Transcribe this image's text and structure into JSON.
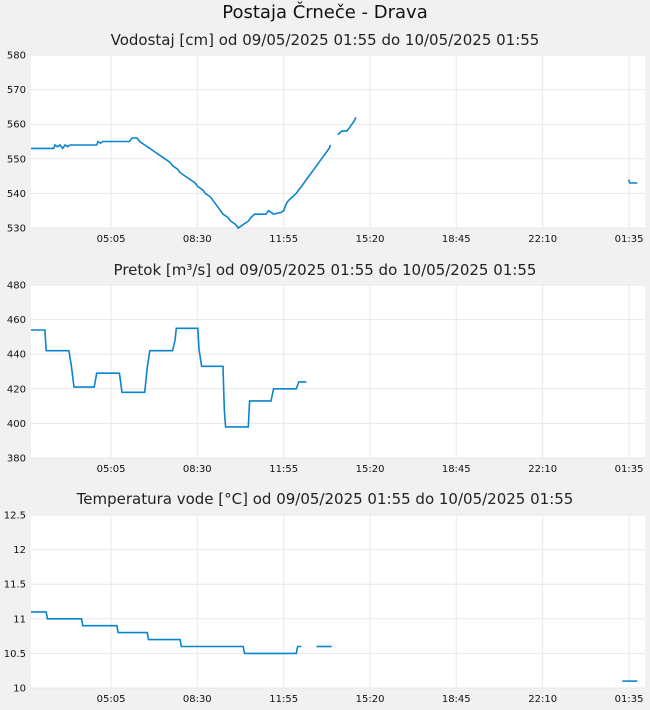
{
  "page_title": "Postaja Črneče - Drava",
  "colors": {
    "line": "#0a84d0",
    "plot_bg": "#ffffff",
    "grid": "#e8e8e8",
    "page_bg": "#f1f1f1"
  },
  "x_ticks": [
    "05:05",
    "08:30",
    "11:55",
    "15:20",
    "18:45",
    "22:10",
    "01:35"
  ],
  "chart_data": [
    {
      "type": "line",
      "title": "Vodostaj [cm] od 09/05/2025 01:55 do 10/05/2025 01:55",
      "xlabel": "",
      "ylabel": "",
      "ylim": [
        530,
        580
      ],
      "y_ticks": [
        "580",
        "570",
        "560",
        "550",
        "540",
        "530"
      ],
      "x_unit": "hours since 09/05/2025 01:55",
      "segments": [
        [
          [
            0,
            553
          ],
          [
            0.9,
            553
          ],
          [
            0.95,
            554
          ],
          [
            1.05,
            553.5
          ],
          [
            1.15,
            554
          ],
          [
            1.25,
            553
          ],
          [
            1.35,
            554
          ],
          [
            1.45,
            553.5
          ],
          [
            1.55,
            554
          ],
          [
            2.6,
            554
          ],
          [
            2.65,
            555
          ],
          [
            2.75,
            554.5
          ],
          [
            2.85,
            555
          ],
          [
            3.9,
            555
          ],
          [
            4.0,
            556
          ],
          [
            4.2,
            556
          ],
          [
            4.3,
            555
          ],
          [
            4.5,
            554
          ],
          [
            4.7,
            553
          ],
          [
            4.9,
            552
          ],
          [
            5.1,
            551
          ],
          [
            5.3,
            550
          ],
          [
            5.5,
            549
          ],
          [
            5.6,
            548
          ],
          [
            5.8,
            547
          ],
          [
            5.9,
            546
          ],
          [
            6.1,
            545
          ],
          [
            6.3,
            544
          ],
          [
            6.5,
            543
          ],
          [
            6.6,
            542
          ],
          [
            6.8,
            541
          ],
          [
            6.9,
            540
          ],
          [
            7.1,
            539
          ],
          [
            7.2,
            538
          ],
          [
            7.3,
            537
          ],
          [
            7.4,
            536
          ],
          [
            7.5,
            535
          ],
          [
            7.6,
            534
          ],
          [
            7.8,
            533
          ],
          [
            7.9,
            532
          ],
          [
            8.1,
            531
          ],
          [
            8.2,
            530
          ],
          [
            8.3,
            530.5
          ],
          [
            8.4,
            531
          ],
          [
            8.5,
            531.5
          ],
          [
            8.6,
            532
          ],
          [
            8.7,
            533
          ],
          [
            8.85,
            534
          ],
          [
            9.3,
            534
          ],
          [
            9.4,
            535
          ],
          [
            9.5,
            534.5
          ],
          [
            9.6,
            534
          ],
          [
            9.9,
            534.5
          ],
          [
            10.0,
            535
          ],
          [
            10.1,
            537
          ],
          [
            10.2,
            538
          ],
          [
            10.35,
            539
          ],
          [
            10.5,
            540
          ],
          [
            10.6,
            541
          ],
          [
            10.7,
            542
          ],
          [
            10.8,
            543
          ],
          [
            10.9,
            544
          ],
          [
            11.0,
            545
          ],
          [
            11.1,
            546
          ],
          [
            11.2,
            547
          ],
          [
            11.3,
            548
          ],
          [
            11.4,
            549
          ],
          [
            11.5,
            550
          ],
          [
            11.6,
            551
          ],
          [
            11.7,
            552
          ],
          [
            11.8,
            553
          ],
          [
            11.85,
            554
          ]
        ],
        [
          [
            12.15,
            557
          ],
          [
            12.3,
            558
          ],
          [
            12.5,
            558
          ],
          [
            12.6,
            559
          ],
          [
            12.7,
            560
          ],
          [
            12.8,
            561
          ],
          [
            12.85,
            562
          ]
        ],
        [
          [
            23.65,
            544
          ],
          [
            23.7,
            543
          ],
          [
            24.0,
            543
          ]
        ]
      ]
    },
    {
      "type": "line",
      "title": "Pretok [m³/s] od 09/05/2025 01:55 do 10/05/2025 01:55",
      "xlabel": "",
      "ylabel": "",
      "ylim": [
        380,
        480
      ],
      "y_ticks": [
        "480",
        "460",
        "440",
        "420",
        "400",
        "380"
      ],
      "x_unit": "hours since 09/05/2025 01:55",
      "segments": [
        [
          [
            0,
            454
          ],
          [
            0.55,
            454
          ],
          [
            0.6,
            442
          ],
          [
            1.5,
            442
          ],
          [
            1.6,
            433
          ],
          [
            1.7,
            421
          ],
          [
            2.5,
            421
          ],
          [
            2.6,
            429
          ],
          [
            3.5,
            429
          ],
          [
            3.6,
            418
          ],
          [
            4.5,
            418
          ],
          [
            4.6,
            432
          ],
          [
            4.7,
            442
          ],
          [
            5.6,
            442
          ],
          [
            5.7,
            448
          ],
          [
            5.75,
            455
          ],
          [
            6.6,
            455
          ],
          [
            6.65,
            443
          ],
          [
            6.75,
            433
          ],
          [
            7.6,
            433
          ],
          [
            7.65,
            408
          ],
          [
            7.7,
            398
          ],
          [
            8.6,
            398
          ],
          [
            8.65,
            413
          ],
          [
            9.5,
            413
          ],
          [
            9.6,
            420
          ],
          [
            10.5,
            420
          ],
          [
            10.6,
            424
          ],
          [
            10.9,
            424
          ]
        ]
      ]
    },
    {
      "type": "line",
      "title": "Temperatura vode [°C] od 09/05/2025 01:55 do 10/05/2025 01:55",
      "xlabel": "",
      "ylabel": "",
      "ylim": [
        10,
        12.5
      ],
      "y_ticks": [
        "12.5",
        "12",
        "11.5",
        "11",
        "10.5",
        "10"
      ],
      "x_unit": "hours since 09/05/2025 01:55",
      "segments": [
        [
          [
            0,
            11.1
          ],
          [
            0.6,
            11.1
          ],
          [
            0.65,
            11.0
          ],
          [
            2.0,
            11.0
          ],
          [
            2.05,
            10.9
          ],
          [
            3.4,
            10.9
          ],
          [
            3.45,
            10.8
          ],
          [
            4.6,
            10.8
          ],
          [
            4.65,
            10.7
          ],
          [
            5.9,
            10.7
          ],
          [
            5.95,
            10.6
          ],
          [
            8.4,
            10.6
          ],
          [
            8.45,
            10.5
          ],
          [
            10.5,
            10.5
          ],
          [
            10.55,
            10.6
          ],
          [
            10.7,
            10.6
          ]
        ],
        [
          [
            11.3,
            10.6
          ],
          [
            11.9,
            10.6
          ]
        ],
        [
          [
            23.4,
            10.1
          ],
          [
            24.0,
            10.1
          ]
        ]
      ]
    }
  ]
}
